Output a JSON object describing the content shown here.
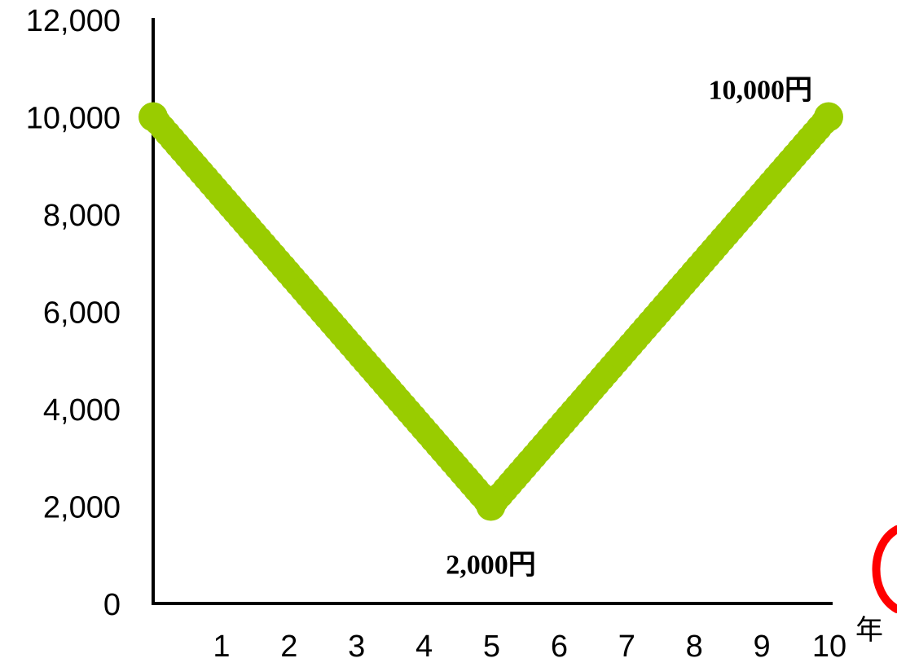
{
  "chart_data": {
    "type": "line",
    "title": "",
    "xlabel": "年",
    "ylabel": "",
    "x": [
      0,
      5,
      10
    ],
    "series": [
      {
        "values": [
          10000,
          2000,
          10000
        ],
        "color": "#99cc00",
        "marker": "circle"
      }
    ],
    "xlim": [
      0,
      10
    ],
    "ylim": [
      0,
      12000
    ],
    "x_ticks": [
      1,
      2,
      3,
      4,
      5,
      6,
      7,
      8,
      9,
      10
    ],
    "x_tick_labels": [
      "1",
      "2",
      "3",
      "4",
      "5",
      "6",
      "7",
      "8",
      "9",
      "10"
    ],
    "y_ticks": [
      0,
      2000,
      4000,
      6000,
      8000,
      10000,
      12000
    ],
    "y_tick_labels": [
      "0",
      "2,000",
      "4,000",
      "6,000",
      "8,000",
      "10,000",
      "12,000"
    ],
    "grid": false,
    "annotations": [
      {
        "x": 5,
        "y": 2000,
        "text": "2,000円",
        "position": "below"
      },
      {
        "x": 10,
        "y": 10000,
        "text": "10,000円",
        "position": "above-left"
      }
    ],
    "decoration_color": "#ff0000"
  }
}
